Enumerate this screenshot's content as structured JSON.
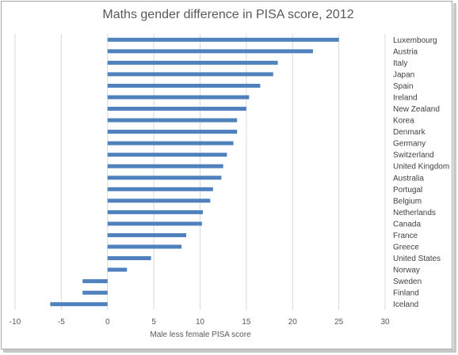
{
  "chart_data": {
    "type": "bar",
    "orientation": "horizontal",
    "title": "Maths gender difference in PISA score, 2012",
    "xlabel": "Male less female PISA score",
    "ylabel": "",
    "xlim": [
      -10,
      30
    ],
    "xticks": [
      -10,
      -5,
      0,
      5,
      10,
      15,
      20,
      25,
      30
    ],
    "grid": "vertical",
    "category_labels_position": "right",
    "bar_color": "#4f81bd",
    "categories": [
      "Luxembourg",
      "Austria",
      "Italy",
      "Japan",
      "Spain",
      "Ireland",
      "New Zealand",
      "Korea",
      "Denmark",
      "Germany",
      "Switzerland",
      "United Kingdom",
      "Australia",
      "Portugal",
      "Belgium",
      "Netherlands",
      "Canada",
      "France",
      "Greece",
      "United States",
      "Norway",
      "Sweden",
      "Finland",
      "Iceland"
    ],
    "values": [
      25.0,
      22.2,
      18.4,
      17.9,
      16.5,
      15.3,
      15.0,
      14.0,
      14.0,
      13.6,
      12.9,
      12.5,
      12.3,
      11.4,
      11.1,
      10.3,
      10.2,
      8.5,
      8.0,
      4.7,
      2.1,
      -2.7,
      -2.7,
      -6.2
    ]
  }
}
